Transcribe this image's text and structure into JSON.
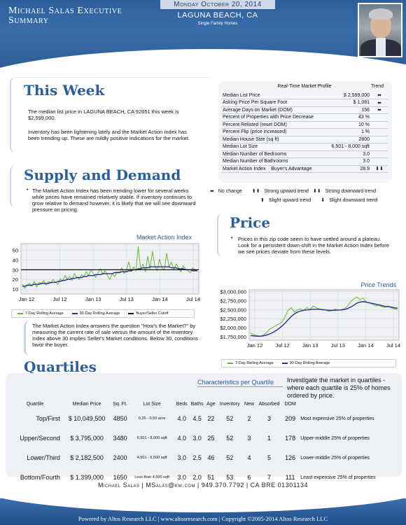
{
  "header": {
    "title_line1": "Michael Salas Executive",
    "title_line2": "Summary",
    "date": "Monday October 20, 2014",
    "city": "LAGUNA BEACH, CA",
    "type": "Single Family Homes"
  },
  "this_week": {
    "title": "This Week",
    "p1": "The median list price in LAGUNA BEACH, CA 92651 this week is $2,599,000.",
    "p2": "Inventory has been lightening lately and the Market Action Index has been trending up. These are mildly positive indications for the market."
  },
  "market_profile": {
    "title": "Real-Time Market Profile",
    "trend_header": "Trend",
    "rows": [
      {
        "label": "Median List Price",
        "value": "$ 2,599,000",
        "trend": "⬌"
      },
      {
        "label": "Asking Price Per Square Foot",
        "value": "$ 1,081",
        "trend": "⬌"
      },
      {
        "label": "Average Days on Market (DOM)",
        "value": "156",
        "trend": "⬌"
      },
      {
        "label": "Percent of Properties with Price Decrease",
        "value": "43 %",
        "trend": ""
      },
      {
        "label": "Percent Relisted (reset DOM)",
        "value": "10 %",
        "trend": ""
      },
      {
        "label": "Percent Flip (price increased)",
        "value": "1 %",
        "trend": ""
      },
      {
        "label": "Median House Size (sq ft)",
        "value": "2800",
        "trend": ""
      },
      {
        "label": "Median Lot Size",
        "value": "6,501 - 8,000 sqft",
        "trend": ""
      },
      {
        "label": "Median Number of Bedrooms",
        "value": "3.0",
        "trend": ""
      },
      {
        "label": "Median Number of Bathrooms",
        "value": "3.0",
        "trend": ""
      }
    ],
    "last_row": {
      "label": "Market Action Index",
      "status": "Buyer's Advantage",
      "value": "28.9",
      "trend": "⬇⬇"
    }
  },
  "legend": {
    "no_change": "No change",
    "strong_up": "Strong upward trend",
    "strong_down": "Strong downward trend",
    "slight_up": "Slight upward trend",
    "slight_down": "Slight downward trend"
  },
  "supply_demand": {
    "title": "Supply and Demand",
    "text": "The Market Action Index has been trending lower for several weeks while prices have remained relatively stable. If inventory continues to grow relative to demand however, it is likely that we will see downward pressure on pricing.",
    "note": "The Market Action Index answers the question \"How's the Market?\" by measuring the current rate of sale versus the amount of the inventory. Index above 30 implies Seller's Market conditions. Below 30, conditions favor the buyer."
  },
  "price": {
    "title": "Price",
    "text": "Prices in this zip code seem to have settled around a plateau. Look for a persistent down-shift in the Market Action Index before we see prices deviate from these levels."
  },
  "chart_data": [
    {
      "type": "line",
      "title": "Market Action Index",
      "x_ticks": [
        "Jan 12",
        "Jul 12",
        "Jan 13",
        "Jul 13",
        "Jan 14",
        "Jul 14"
      ],
      "y_ticks": [
        10,
        20,
        30,
        40,
        50
      ],
      "ylim": [
        5,
        57
      ],
      "series": [
        {
          "name": "7-Day Rolling Average",
          "color": "#66bb33",
          "values": [
            15,
            11,
            14,
            16,
            13,
            18,
            12,
            17,
            15,
            19,
            14,
            18,
            16,
            20,
            17,
            15,
            21,
            18,
            24,
            20,
            23,
            19,
            26,
            22,
            20,
            25,
            23,
            28,
            24,
            30,
            26,
            22,
            27,
            31,
            25,
            29,
            24,
            20,
            26,
            23,
            28,
            27,
            32,
            26,
            30,
            38,
            28,
            33,
            29,
            54,
            30,
            36,
            28,
            44,
            31,
            49,
            34,
            29,
            41,
            32,
            30,
            47,
            33,
            38,
            30,
            36,
            32,
            28,
            34,
            31,
            29,
            27,
            32,
            30,
            29
          ]
        },
        {
          "name": "90-Day Rolling Average",
          "color": "#2b2f8f",
          "values": [
            13,
            13,
            14,
            14,
            14,
            15,
            15,
            15,
            16,
            16,
            16,
            16,
            17,
            17,
            17,
            18,
            18,
            19,
            19,
            20,
            20,
            21,
            21,
            22,
            22,
            22,
            23,
            23,
            24,
            24,
            24,
            25,
            25,
            25,
            26,
            26,
            26,
            26,
            26,
            27,
            27,
            27,
            28,
            28,
            28,
            29,
            29,
            30,
            30,
            31,
            31,
            32,
            32,
            32,
            33,
            33,
            33,
            33,
            33,
            33,
            33,
            33,
            33,
            32,
            32,
            32,
            31,
            31,
            31,
            30,
            30,
            30,
            29,
            29,
            29
          ]
        },
        {
          "name": "Buyer/Seller Cutoff",
          "color": "#111111",
          "values": [
            30
          ]
        }
      ]
    },
    {
      "type": "line",
      "title": "Price Trends",
      "x_ticks": [
        "Jan 12",
        "Jul 12",
        "Jan 13",
        "Jul 13",
        "Jan 14",
        "Jul 14"
      ],
      "y_ticks": [
        "$1,750,000",
        "$2,000,000",
        "$2,250,000",
        "$2,500,000",
        "$2,750,000",
        "$3,000,000"
      ],
      "ylim": [
        1650000,
        3050000
      ],
      "series": [
        {
          "name": "7-Day Rolling Average",
          "color": "#66bb33",
          "values": [
            1850000,
            1800000,
            1780000,
            1760000,
            1790000,
            1850000,
            1950000,
            2000000,
            2050000,
            2100000,
            2150000,
            2300000,
            2480000,
            2550000,
            2420000,
            2500000,
            2520000,
            2480000,
            2560000,
            2500000,
            2600000,
            2550000,
            2520000,
            2480000,
            2500000,
            2450000,
            2470000,
            2520000,
            2480000,
            2500000,
            2530000,
            2600000,
            2720000,
            2800000,
            2850000,
            2780000,
            2820000,
            2700000,
            2680000,
            2650000,
            2600000,
            2620000,
            2580000,
            2560000,
            2600000,
            2550000,
            2520000,
            2500000
          ]
        },
        {
          "name": "90-Day Rolling Average",
          "color": "#2b2f8f",
          "values": [
            1780000,
            1770000,
            1760000,
            1760000,
            1770000,
            1790000,
            1820000,
            1860000,
            1910000,
            1970000,
            2040000,
            2120000,
            2220000,
            2310000,
            2380000,
            2430000,
            2460000,
            2480000,
            2490000,
            2500000,
            2510000,
            2510000,
            2510000,
            2500000,
            2490000,
            2480000,
            2480000,
            2480000,
            2490000,
            2490000,
            2500000,
            2530000,
            2570000,
            2620000,
            2680000,
            2710000,
            2720000,
            2710000,
            2690000,
            2670000,
            2650000,
            2630000,
            2610000,
            2590000,
            2580000,
            2570000,
            2550000,
            2540000
          ]
        }
      ]
    }
  ],
  "quartiles": {
    "title": "Quartiles",
    "subtitle": "Characteristics per Quartile",
    "intro": "Investigate the market in quartiles - where each quartile is 25% of homes ordered by price.",
    "headers": [
      "Quartile",
      "Median Price",
      "Sq. Ft.",
      "Lot Size",
      "Beds",
      "Baths",
      "Age",
      "Inventory",
      "New",
      "Absorbed",
      "DOM",
      ""
    ],
    "rows": [
      {
        "name": "Top/First",
        "price": "$ 10,049,500",
        "sqft": "4850",
        "lot": "0.25 - 0.50 acre",
        "beds": "4.0",
        "baths": "4.5",
        "age": "22",
        "inv": "52",
        "new": "2",
        "abs": "3",
        "dom": "209",
        "desc": "Most expensive 25% of properties"
      },
      {
        "name": "Upper/Second",
        "price": "$ 3,795,000",
        "sqft": "3480",
        "lot": "6,501 - 8,000 sqft",
        "beds": "4.0",
        "baths": "3.0",
        "age": "25",
        "inv": "52",
        "new": "3",
        "abs": "1",
        "dom": "178",
        "desc": "Upper-middle 25% of properties"
      },
      {
        "name": "Lower/Third",
        "price": "$ 2,182,500",
        "sqft": "2400",
        "lot": "4,501 - 6,500 sqft",
        "beds": "3.0",
        "baths": "2.5",
        "age": "46",
        "inv": "52",
        "new": "4",
        "abs": "5",
        "dom": "126",
        "desc": "Lower-middle 25% of properties"
      },
      {
        "name": "Bottom/Fourth",
        "price": "$ 1,399,000",
        "sqft": "1650",
        "lot": "Less than 4,500 sqft",
        "beds": "3.0",
        "baths": "2.0",
        "age": "51",
        "inv": "53",
        "new": "6",
        "abs": "7",
        "dom": "111",
        "desc": "Least expensive 25% of properties"
      }
    ]
  },
  "footer": {
    "contact": "Michael Salas | MSalas@kw.com | 949.370.7792 | CA BRE 01301134",
    "powered": "Powered by Altos Research LLC | www.altosresearch.com | Copyright ©2005-2014 Altos Research LLC"
  }
}
